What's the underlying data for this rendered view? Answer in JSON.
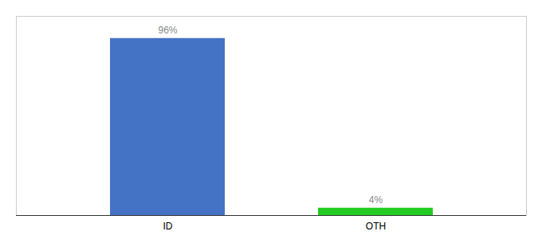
{
  "chart_data": {
    "type": "bar",
    "categories": [
      "ID",
      "OTH"
    ],
    "values": [
      96,
      4
    ],
    "value_labels": [
      "96%",
      "4%"
    ],
    "data_labels": true,
    "colors": [
      "#4472c4",
      "#22cc22"
    ],
    "ylim": [
      0,
      108
    ],
    "tick_labels": "x"
  }
}
